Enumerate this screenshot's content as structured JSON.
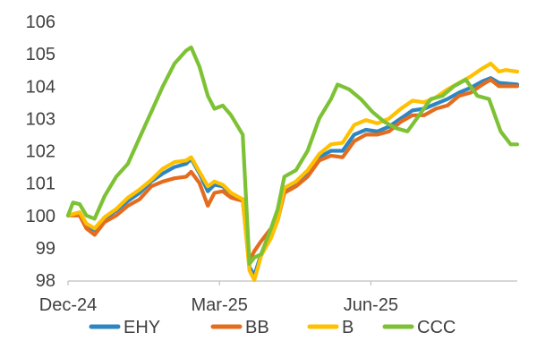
{
  "chart_data": {
    "type": "line",
    "title": "",
    "xlabel": "",
    "ylabel": "",
    "ylim": [
      98,
      106
    ],
    "yticks": [
      "98",
      "99",
      "100",
      "101",
      "102",
      "103",
      "104",
      "105",
      "106"
    ],
    "xlim": [
      "2024-12-02",
      "2025-08-29"
    ],
    "xticks": [
      {
        "label": "Dec-24",
        "date": "2024-12-02"
      },
      {
        "label": "Mar-25",
        "date": "2025-03-03"
      },
      {
        "label": "Jun-25",
        "date": "2025-06-02"
      }
    ],
    "grid": false,
    "legend": "bottom",
    "series": [
      {
        "name": "EHY",
        "color": "#2e86c1",
        "points": [
          [
            "2024-12-02",
            100.0
          ],
          [
            "2024-12-09",
            100.05
          ],
          [
            "2024-12-13",
            99.7
          ],
          [
            "2024-12-18",
            99.55
          ],
          [
            "2024-12-24",
            99.9
          ],
          [
            "2024-12-31",
            100.15
          ],
          [
            "2025-01-07",
            100.45
          ],
          [
            "2025-01-14",
            100.7
          ],
          [
            "2025-01-21",
            101.05
          ],
          [
            "2025-01-28",
            101.3
          ],
          [
            "2025-02-04",
            101.5
          ],
          [
            "2025-02-11",
            101.6
          ],
          [
            "2025-02-14",
            101.75
          ],
          [
            "2025-02-19",
            101.3
          ],
          [
            "2025-02-24",
            100.75
          ],
          [
            "2025-02-28",
            100.95
          ],
          [
            "2025-03-05",
            100.9
          ],
          [
            "2025-03-10",
            100.65
          ],
          [
            "2025-03-17",
            100.5
          ],
          [
            "2025-03-21",
            98.4
          ],
          [
            "2025-03-24",
            98.15
          ],
          [
            "2025-03-28",
            98.8
          ],
          [
            "2025-04-03",
            99.4
          ],
          [
            "2025-04-07",
            99.9
          ],
          [
            "2025-04-11",
            100.8
          ],
          [
            "2025-04-18",
            101.0
          ],
          [
            "2025-04-25",
            101.3
          ],
          [
            "2025-05-02",
            101.8
          ],
          [
            "2025-05-09",
            102.0
          ],
          [
            "2025-05-16",
            102.0
          ],
          [
            "2025-05-23",
            102.5
          ],
          [
            "2025-05-30",
            102.65
          ],
          [
            "2025-06-06",
            102.6
          ],
          [
            "2025-06-13",
            102.75
          ],
          [
            "2025-06-20",
            103.0
          ],
          [
            "2025-06-27",
            103.25
          ],
          [
            "2025-07-04",
            103.3
          ],
          [
            "2025-07-11",
            103.45
          ],
          [
            "2025-07-18",
            103.6
          ],
          [
            "2025-07-25",
            103.8
          ],
          [
            "2025-08-01",
            103.95
          ],
          [
            "2025-08-08",
            104.15
          ],
          [
            "2025-08-13",
            104.25
          ],
          [
            "2025-08-18",
            104.1
          ],
          [
            "2025-08-29",
            104.05
          ]
        ]
      },
      {
        "name": "BB",
        "color": "#e46c1e",
        "points": [
          [
            "2024-12-02",
            100.0
          ],
          [
            "2024-12-09",
            100.0
          ],
          [
            "2024-12-13",
            99.6
          ],
          [
            "2024-12-18",
            99.4
          ],
          [
            "2024-12-24",
            99.8
          ],
          [
            "2024-12-31",
            100.0
          ],
          [
            "2025-01-07",
            100.3
          ],
          [
            "2025-01-14",
            100.5
          ],
          [
            "2025-01-21",
            100.9
          ],
          [
            "2025-01-28",
            101.05
          ],
          [
            "2025-02-04",
            101.15
          ],
          [
            "2025-02-11",
            101.2
          ],
          [
            "2025-02-14",
            101.35
          ],
          [
            "2025-02-19",
            101.0
          ],
          [
            "2025-02-24",
            100.3
          ],
          [
            "2025-02-28",
            100.7
          ],
          [
            "2025-03-05",
            100.75
          ],
          [
            "2025-03-10",
            100.55
          ],
          [
            "2025-03-17",
            100.45
          ],
          [
            "2025-03-21",
            98.6
          ],
          [
            "2025-03-24",
            98.9
          ],
          [
            "2025-03-28",
            99.2
          ],
          [
            "2025-04-03",
            99.6
          ],
          [
            "2025-04-07",
            99.85
          ],
          [
            "2025-04-11",
            100.7
          ],
          [
            "2025-04-18",
            100.9
          ],
          [
            "2025-04-25",
            101.2
          ],
          [
            "2025-05-02",
            101.7
          ],
          [
            "2025-05-09",
            101.85
          ],
          [
            "2025-05-16",
            101.8
          ],
          [
            "2025-05-23",
            102.3
          ],
          [
            "2025-05-30",
            102.5
          ],
          [
            "2025-06-06",
            102.5
          ],
          [
            "2025-06-13",
            102.6
          ],
          [
            "2025-06-20",
            102.9
          ],
          [
            "2025-06-27",
            103.1
          ],
          [
            "2025-07-04",
            103.1
          ],
          [
            "2025-07-11",
            103.3
          ],
          [
            "2025-07-18",
            103.4
          ],
          [
            "2025-07-25",
            103.7
          ],
          [
            "2025-08-01",
            103.8
          ],
          [
            "2025-08-08",
            104.05
          ],
          [
            "2025-08-13",
            104.2
          ],
          [
            "2025-08-18",
            104.0
          ],
          [
            "2025-08-29",
            104.0
          ]
        ]
      },
      {
        "name": "B",
        "color": "#ffc000",
        "points": [
          [
            "2024-12-02",
            100.0
          ],
          [
            "2024-12-09",
            100.1
          ],
          [
            "2024-12-13",
            99.75
          ],
          [
            "2024-12-18",
            99.6
          ],
          [
            "2024-12-24",
            99.95
          ],
          [
            "2024-12-31",
            100.2
          ],
          [
            "2025-01-07",
            100.55
          ],
          [
            "2025-01-14",
            100.8
          ],
          [
            "2025-01-21",
            101.1
          ],
          [
            "2025-01-28",
            101.45
          ],
          [
            "2025-02-04",
            101.65
          ],
          [
            "2025-02-11",
            101.7
          ],
          [
            "2025-02-14",
            101.8
          ],
          [
            "2025-02-19",
            101.35
          ],
          [
            "2025-02-24",
            100.9
          ],
          [
            "2025-02-28",
            101.05
          ],
          [
            "2025-03-05",
            100.95
          ],
          [
            "2025-03-10",
            100.7
          ],
          [
            "2025-03-17",
            100.5
          ],
          [
            "2025-03-21",
            98.3
          ],
          [
            "2025-03-24",
            98.0
          ],
          [
            "2025-03-28",
            98.75
          ],
          [
            "2025-04-03",
            99.3
          ],
          [
            "2025-04-07",
            99.85
          ],
          [
            "2025-04-11",
            100.85
          ],
          [
            "2025-04-18",
            101.05
          ],
          [
            "2025-04-25",
            101.4
          ],
          [
            "2025-05-02",
            101.9
          ],
          [
            "2025-05-09",
            102.2
          ],
          [
            "2025-05-16",
            102.25
          ],
          [
            "2025-05-23",
            102.8
          ],
          [
            "2025-05-30",
            102.95
          ],
          [
            "2025-06-06",
            102.85
          ],
          [
            "2025-06-13",
            103.0
          ],
          [
            "2025-06-20",
            103.3
          ],
          [
            "2025-06-27",
            103.55
          ],
          [
            "2025-07-04",
            103.5
          ],
          [
            "2025-07-11",
            103.65
          ],
          [
            "2025-07-18",
            103.9
          ],
          [
            "2025-07-25",
            104.1
          ],
          [
            "2025-08-01",
            104.3
          ],
          [
            "2025-08-08",
            104.55
          ],
          [
            "2025-08-13",
            104.7
          ],
          [
            "2025-08-18",
            104.45
          ],
          [
            "2025-08-22",
            104.5
          ],
          [
            "2025-08-29",
            104.45
          ]
        ]
      },
      {
        "name": "CCC",
        "color": "#7dc234",
        "points": [
          [
            "2024-12-02",
            100.0
          ],
          [
            "2024-12-05",
            100.4
          ],
          [
            "2024-12-09",
            100.35
          ],
          [
            "2024-12-13",
            100.0
          ],
          [
            "2024-12-18",
            99.9
          ],
          [
            "2024-12-24",
            100.6
          ],
          [
            "2024-12-31",
            101.2
          ],
          [
            "2025-01-07",
            101.6
          ],
          [
            "2025-01-14",
            102.4
          ],
          [
            "2025-01-21",
            103.2
          ],
          [
            "2025-01-28",
            104.0
          ],
          [
            "2025-02-04",
            104.7
          ],
          [
            "2025-02-11",
            105.1
          ],
          [
            "2025-02-14",
            105.2
          ],
          [
            "2025-02-19",
            104.6
          ],
          [
            "2025-02-24",
            103.7
          ],
          [
            "2025-02-28",
            103.3
          ],
          [
            "2025-03-05",
            103.4
          ],
          [
            "2025-03-10",
            103.1
          ],
          [
            "2025-03-17",
            102.5
          ],
          [
            "2025-03-21",
            98.5
          ],
          [
            "2025-03-24",
            98.7
          ],
          [
            "2025-03-28",
            98.8
          ],
          [
            "2025-04-03",
            99.6
          ],
          [
            "2025-04-07",
            100.2
          ],
          [
            "2025-04-11",
            101.2
          ],
          [
            "2025-04-18",
            101.4
          ],
          [
            "2025-04-25",
            102.0
          ],
          [
            "2025-05-02",
            103.0
          ],
          [
            "2025-05-09",
            103.6
          ],
          [
            "2025-05-13",
            104.05
          ],
          [
            "2025-05-20",
            103.9
          ],
          [
            "2025-05-27",
            103.6
          ],
          [
            "2025-06-03",
            103.2
          ],
          [
            "2025-06-10",
            102.9
          ],
          [
            "2025-06-17",
            102.7
          ],
          [
            "2025-06-24",
            102.6
          ],
          [
            "2025-07-01",
            103.1
          ],
          [
            "2025-07-08",
            103.6
          ],
          [
            "2025-07-15",
            103.7
          ],
          [
            "2025-07-22",
            104.0
          ],
          [
            "2025-07-29",
            104.2
          ],
          [
            "2025-08-05",
            103.7
          ],
          [
            "2025-08-12",
            103.6
          ],
          [
            "2025-08-19",
            102.6
          ],
          [
            "2025-08-25",
            102.2
          ],
          [
            "2025-08-29",
            102.2
          ]
        ]
      }
    ]
  }
}
